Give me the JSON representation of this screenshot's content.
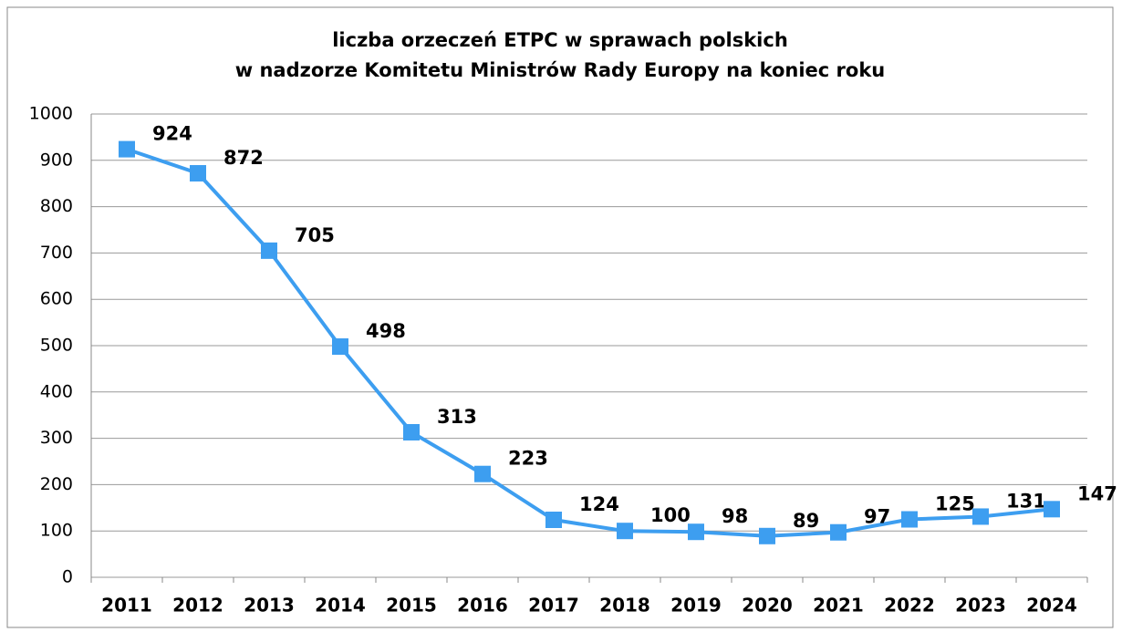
{
  "chart_data": {
    "type": "line",
    "title": [
      "liczba orzeczeń ETPC w sprawach polskich",
      "w nadzorze Komitetu Ministrów Rady Europy na koniec roku"
    ],
    "categories": [
      "2011",
      "2012",
      "2013",
      "2014",
      "2015",
      "2016",
      "2017",
      "2018",
      "2019",
      "2020",
      "2021",
      "2022",
      "2023",
      "2024"
    ],
    "values": [
      924,
      872,
      705,
      498,
      313,
      223,
      124,
      100,
      98,
      89,
      97,
      125,
      131,
      147
    ],
    "color": "#3d9ef0",
    "ylim": [
      0,
      1000
    ],
    "yticks": [
      0,
      100,
      200,
      300,
      400,
      500,
      600,
      700,
      800,
      900,
      1000
    ],
    "grid": true
  }
}
